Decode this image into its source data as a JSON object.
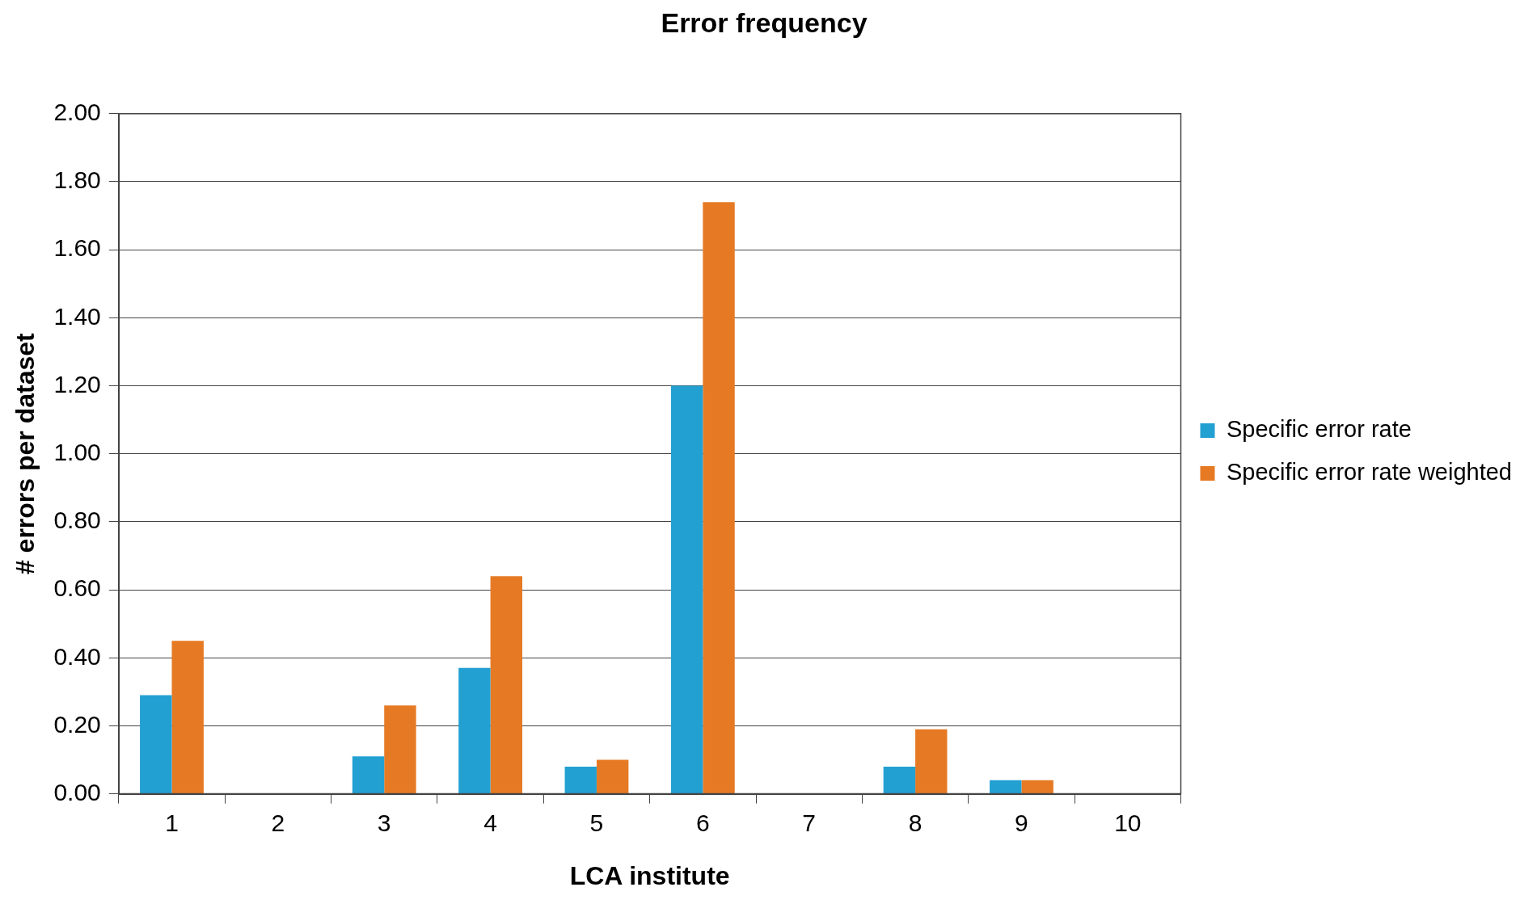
{
  "chart_data": {
    "type": "bar",
    "title": "Error frequency",
    "xlabel": "LCA institute",
    "ylabel": "# errors per dataset",
    "categories": [
      "1",
      "2",
      "3",
      "4",
      "5",
      "6",
      "7",
      "8",
      "9",
      "10"
    ],
    "series": [
      {
        "name": "Specific error rate",
        "color": "#23a0d2",
        "values": [
          0.29,
          0,
          0.11,
          0.37,
          0.08,
          1.2,
          0,
          0.08,
          0.04,
          0
        ]
      },
      {
        "name": "Specific error rate weighted",
        "color": "#e67a24",
        "values": [
          0.45,
          0,
          0.26,
          0.64,
          0.1,
          1.74,
          0,
          0.19,
          0.04,
          0
        ]
      }
    ],
    "ylim": [
      0,
      2
    ],
    "yticks": [
      {
        "value": 0,
        "label": "0.00"
      },
      {
        "value": 0.2,
        "label": "0.20"
      },
      {
        "value": 0.4,
        "label": "0.40"
      },
      {
        "value": 0.6,
        "label": "0.60"
      },
      {
        "value": 0.8,
        "label": "0.80"
      },
      {
        "value": 1,
        "label": "1.00"
      },
      {
        "value": 1.2,
        "label": "1.20"
      },
      {
        "value": 1.4,
        "label": "1.40"
      },
      {
        "value": 1.6,
        "label": "1.60"
      },
      {
        "value": 1.8,
        "label": "1.80"
      },
      {
        "value": 2,
        "label": "2.00"
      }
    ],
    "grid": "y",
    "legend": "right"
  }
}
